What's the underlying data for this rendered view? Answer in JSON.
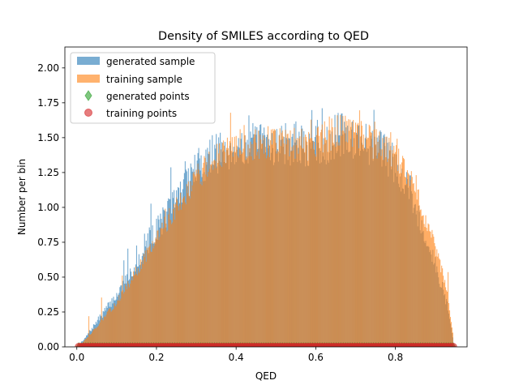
{
  "chart_data": {
    "type": "histogram",
    "title": "Density of SMILES according to QED",
    "xlabel": "QED",
    "ylabel": "Number per bin",
    "xlim": [
      -0.03,
      0.98
    ],
    "ylim": [
      0.0,
      2.15
    ],
    "x_ticks": [
      0.0,
      0.2,
      0.4,
      0.6,
      0.8
    ],
    "x_tick_labels": [
      "0.0",
      "0.2",
      "0.4",
      "0.6",
      "0.8"
    ],
    "y_ticks": [
      0.0,
      0.25,
      0.5,
      0.75,
      1.0,
      1.25,
      1.5,
      1.75,
      2.0
    ],
    "y_tick_labels": [
      "0.00",
      "0.25",
      "0.50",
      "0.75",
      "1.00",
      "1.25",
      "1.50",
      "1.75",
      "2.00"
    ],
    "grid": false,
    "legend_position": "upper-left",
    "bin_range": [
      0.005,
      0.945
    ],
    "series": [
      {
        "name": "generated sample",
        "kind": "histogram",
        "color": "#1f77b4",
        "opacity": 0.6,
        "envelope_x": [
          0.005,
          0.03,
          0.06,
          0.1,
          0.14,
          0.18,
          0.22,
          0.26,
          0.3,
          0.34,
          0.38,
          0.42,
          0.46,
          0.5,
          0.54,
          0.58,
          0.62,
          0.66,
          0.7,
          0.74,
          0.78,
          0.82,
          0.85,
          0.88,
          0.91,
          0.93,
          0.945
        ],
        "envelope_y": [
          0.0,
          0.1,
          0.22,
          0.37,
          0.55,
          0.75,
          0.93,
          1.12,
          1.28,
          1.37,
          1.42,
          1.44,
          1.45,
          1.46,
          1.45,
          1.42,
          1.45,
          1.52,
          1.5,
          1.45,
          1.38,
          1.22,
          1.0,
          0.75,
          0.5,
          0.3,
          0.05
        ]
      },
      {
        "name": "training sample",
        "kind": "histogram",
        "color": "#ff7f0e",
        "opacity": 0.6,
        "envelope_x": [
          0.005,
          0.03,
          0.06,
          0.1,
          0.14,
          0.18,
          0.22,
          0.26,
          0.3,
          0.34,
          0.38,
          0.42,
          0.46,
          0.5,
          0.54,
          0.58,
          0.62,
          0.66,
          0.7,
          0.74,
          0.78,
          0.82,
          0.85,
          0.88,
          0.91,
          0.93,
          0.945
        ],
        "envelope_y": [
          0.0,
          0.08,
          0.18,
          0.32,
          0.5,
          0.68,
          0.87,
          1.05,
          1.22,
          1.33,
          1.4,
          1.43,
          1.45,
          1.48,
          1.47,
          1.45,
          1.5,
          1.55,
          1.52,
          1.47,
          1.42,
          1.3,
          1.12,
          0.88,
          0.62,
          0.38,
          0.08
        ]
      },
      {
        "name": "generated points",
        "kind": "scatter",
        "marker": "thin_diamond",
        "color": "#2ca02c",
        "opacity": 0.6,
        "y": 0.0,
        "x_range": [
          0.005,
          0.945
        ]
      },
      {
        "name": "training points",
        "kind": "scatter",
        "marker": "circle",
        "color": "#d62728",
        "opacity": 0.6,
        "y": 0.0,
        "x_range": [
          0.005,
          0.945
        ]
      }
    ]
  }
}
